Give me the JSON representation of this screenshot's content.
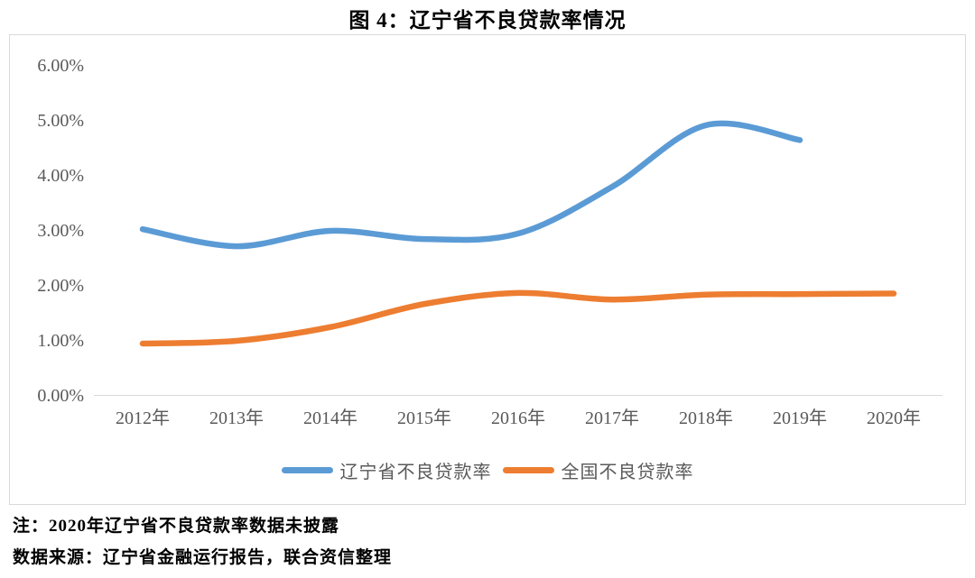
{
  "figure": {
    "title": "图 4：辽宁省不良贷款率情况",
    "note": "注：2020年辽宁省不良贷款率数据未披露",
    "source": "数据来源：辽宁省金融运行报告，联合资信整理"
  },
  "colors": {
    "liaoning_series": "#5B9BD5",
    "national_series": "#ED7D31",
    "axis_text": "#595959",
    "axis_line": "#D9D9D9",
    "frame_border": "#D9D9D9"
  },
  "chart_data": {
    "type": "line",
    "title": "图 4：辽宁省不良贷款率情况",
    "categories": [
      "2012年",
      "2013年",
      "2014年",
      "2015年",
      "2016年",
      "2017年",
      "2018年",
      "2019年",
      "2020年"
    ],
    "series": [
      {
        "name": "辽宁省不良贷款率",
        "color": "#5B9BD5",
        "values": [
          3.03,
          2.72,
          3.0,
          2.85,
          2.95,
          3.8,
          4.92,
          4.65,
          null
        ]
      },
      {
        "name": "全国不良贷款率",
        "color": "#ED7D31",
        "values": [
          0.95,
          1.0,
          1.25,
          1.67,
          1.87,
          1.75,
          1.84,
          1.85,
          1.86
        ]
      }
    ],
    "y_ticks": [
      "6.00%",
      "5.00%",
      "4.00%",
      "3.00%",
      "2.00%",
      "1.00%",
      "0.00%"
    ],
    "ylim": [
      0,
      6
    ],
    "xlabel": "",
    "ylabel": "",
    "grid": false,
    "legend_position": "bottom",
    "smooth": true
  }
}
